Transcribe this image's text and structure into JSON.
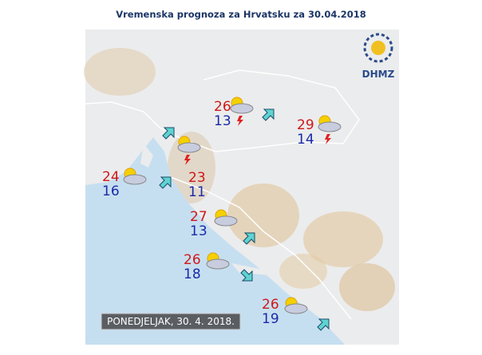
{
  "header": {
    "title": "Vremenska prognoza za Hrvatsku za 30.04.2018"
  },
  "logo": {
    "text": "DHMZ"
  },
  "date_label": "PONEDJELJAK, 30. 4. 2018.",
  "stations": [
    {
      "max": 26,
      "min": 13
    },
    {
      "max": 29,
      "min": 14
    },
    {
      "max": 24,
      "min": 16
    },
    {
      "max": 23,
      "min": 11
    },
    {
      "max": 27,
      "min": 13
    },
    {
      "max": 26,
      "min": 18
    },
    {
      "max": 26,
      "min": 19
    }
  ]
}
